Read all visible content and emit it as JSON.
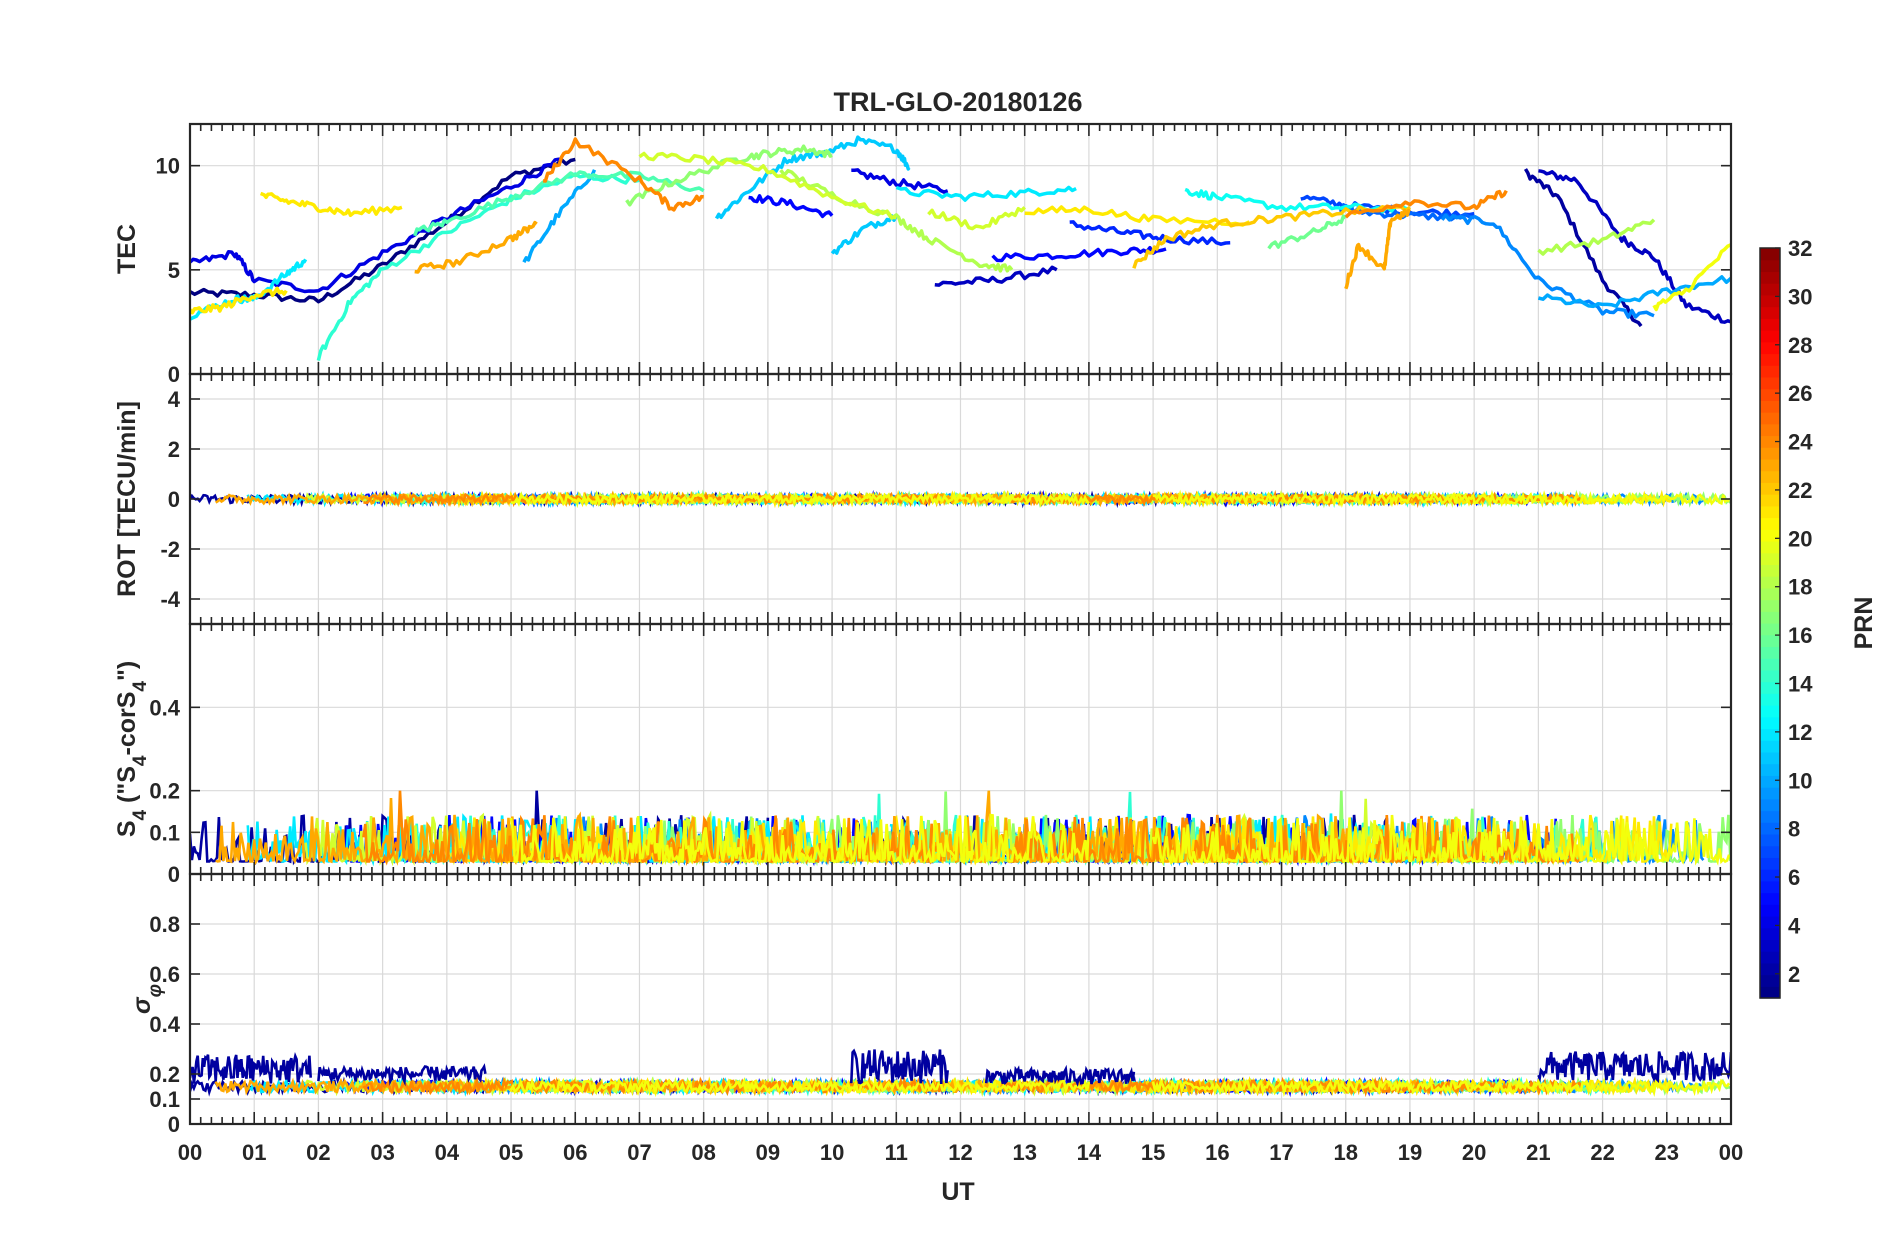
{
  "chart_data": {
    "type": "line",
    "title": "TRL-GLO-20180126",
    "xlabel": "UT",
    "x_tick_labels": [
      "00",
      "01",
      "02",
      "03",
      "04",
      "05",
      "06",
      "07",
      "08",
      "09",
      "10",
      "11",
      "12",
      "13",
      "14",
      "15",
      "16",
      "17",
      "18",
      "19",
      "20",
      "21",
      "22",
      "23",
      "00"
    ],
    "xlim": [
      0,
      24
    ],
    "grid": true,
    "panels": [
      {
        "name": "tec",
        "ylabel": "TEC",
        "ylim": [
          0,
          12
        ],
        "yticks": [
          0,
          5,
          10
        ],
        "ytick_labels": [
          "0",
          "5",
          "10"
        ],
        "series": [
          {
            "name": "PRN 1",
            "prn": 1,
            "x": [
              0.0,
              1.0,
              2.0,
              3.0,
              4.0,
              5.0,
              6.0
            ],
            "y": [
              3.9,
              3.8,
              3.5,
              5.2,
              7.3,
              9.5,
              10.3
            ]
          },
          {
            "name": "PRN 2",
            "prn": 2,
            "x": [
              20.8,
              21.3,
              22.0,
              22.6
            ],
            "y": [
              9.7,
              8.5,
              4.5,
              2.3
            ]
          },
          {
            "name": "PRN 3",
            "prn": 3,
            "x": [
              21.0,
              21.6,
              22.3,
              22.8,
              23.3,
              24.0
            ],
            "y": [
              9.7,
              9.3,
              6.5,
              5.6,
              3.3,
              2.5
            ]
          },
          {
            "name": "PRN 3 (12-14h)",
            "prn": 3,
            "x": [
              11.6,
              12.5,
              13.5
            ],
            "y": [
              4.3,
              4.5,
              5.0
            ]
          },
          {
            "name": "PRN 4",
            "prn": 4,
            "x": [
              0.0,
              0.7,
              1.0,
              2.0,
              3.0,
              4.0,
              5.0,
              5.8
            ],
            "y": [
              5.3,
              5.8,
              4.5,
              4.0,
              5.8,
              7.5,
              9.0,
              10.3
            ]
          },
          {
            "name": "PRN 4 (10-12h)",
            "prn": 4,
            "x": [
              10.3,
              11.0,
              11.8
            ],
            "y": [
              9.7,
              9.2,
              8.8
            ]
          },
          {
            "name": "PRN 5",
            "prn": 5,
            "x": [
              12.5,
              13.5,
              14.5,
              15.2
            ],
            "y": [
              5.6,
              5.7,
              5.9,
              6.0
            ]
          },
          {
            "name": "PRN 5 (8-10h)",
            "prn": 5,
            "x": [
              8.7,
              9.3,
              10.0
            ],
            "y": [
              8.5,
              8.2,
              7.6
            ]
          },
          {
            "name": "PRN 6",
            "prn": 6,
            "x": [
              13.7,
              14.5,
              15.2,
              16.2
            ],
            "y": [
              7.2,
              6.8,
              6.5,
              6.3
            ]
          },
          {
            "name": "PRN 7",
            "prn": 7,
            "x": [
              17.3,
              18.0,
              19.0,
              20.0
            ],
            "y": [
              8.5,
              8.1,
              7.8,
              7.7
            ]
          },
          {
            "name": "PRN 8",
            "prn": 8,
            "x": [
              17.9,
              18.2,
              19.0,
              20.0
            ],
            "y": [
              8.0,
              7.8,
              7.6,
              7.5
            ]
          },
          {
            "name": "PRN 9",
            "prn": 9,
            "x": [
              19.5,
              20.3,
              21.0,
              22.0,
              22.8
            ],
            "y": [
              7.5,
              7.3,
              4.5,
              3.0,
              2.8
            ]
          },
          {
            "name": "PRN 10",
            "prn": 10,
            "x": [
              21.0,
              22.0,
              23.0,
              24.0
            ],
            "y": [
              3.7,
              3.2,
              4.0,
              4.6
            ]
          },
          {
            "name": "PRN 10 (05-06h)",
            "prn": 10,
            "x": [
              5.2,
              5.7,
              6.3
            ],
            "y": [
              5.3,
              7.5,
              9.8
            ]
          },
          {
            "name": "PRN 11",
            "prn": 11,
            "x": [
              9.8,
              10.4,
              11.0,
              11.2
            ],
            "y": [
              10.5,
              11.2,
              10.8,
              9.9
            ]
          },
          {
            "name": "PRN 11 (08-09h)",
            "prn": 11,
            "x": [
              8.2,
              8.7,
              9.3,
              9.8
            ],
            "y": [
              7.5,
              8.8,
              10.3,
              10.6
            ]
          },
          {
            "name": "PRN 11 (10h)",
            "prn": 11,
            "x": [
              10.0,
              10.5,
              11.0
            ],
            "y": [
              5.8,
              7.0,
              7.6
            ]
          },
          {
            "name": "PRN 12",
            "prn": 12,
            "x": [
              0.0,
              0.7,
              1.0,
              1.5,
              1.8
            ],
            "y": [
              2.8,
              3.6,
              3.6,
              4.8,
              5.5
            ]
          },
          {
            "name": "PRN 12 (11-14h)",
            "prn": 12,
            "x": [
              11.0,
              12.0,
              13.0,
              13.8
            ],
            "y": [
              8.8,
              8.5,
              8.7,
              8.9
            ]
          },
          {
            "name": "PRN 13",
            "prn": 13,
            "x": [
              15.5,
              16.0,
              17.0,
              18.0,
              19.0
            ],
            "y": [
              8.8,
              8.5,
              8.0,
              8.0,
              7.9
            ]
          },
          {
            "name": "PRN 14",
            "prn": 14,
            "x": [
              2.0,
              2.5,
              3.0,
              4.0,
              5.0,
              6.0,
              7.0
            ],
            "y": [
              0.8,
              3.5,
              5.0,
              6.8,
              8.4,
              9.5,
              9.3
            ]
          },
          {
            "name": "PRN 15",
            "prn": 15,
            "x": [
              3.5,
              4.0,
              5.0,
              6.0,
              7.0,
              8.0
            ],
            "y": [
              6.8,
              7.3,
              8.5,
              9.6,
              9.5,
              8.8
            ]
          },
          {
            "name": "PRN 16",
            "prn": 16,
            "x": [
              16.8,
              17.5,
              18.0
            ],
            "y": [
              6.1,
              6.8,
              7.5
            ]
          },
          {
            "name": "PRN 17",
            "prn": 17,
            "x": [
              6.8,
              7.5,
              8.5,
              9.0,
              9.6,
              10.0
            ],
            "y": [
              8.2,
              9.2,
              10.3,
              10.6,
              10.8,
              10.5
            ]
          },
          {
            "name": "PRN 18",
            "prn": 18,
            "x": [
              21.0,
              22.0,
              22.8
            ],
            "y": [
              5.9,
              6.4,
              7.4
            ]
          },
          {
            "name": "PRN 18 (09-12h)",
            "prn": 18,
            "x": [
              9.2,
              10.0,
              11.0,
              11.5,
              12.3,
              12.8
            ],
            "y": [
              9.8,
              8.6,
              7.5,
              6.5,
              5.3,
              5.0
            ]
          },
          {
            "name": "PRN 19",
            "prn": 19,
            "x": [
              7.0,
              8.0,
              9.0,
              10.0,
              11.0
            ],
            "y": [
              10.5,
              10.3,
              9.8,
              8.5,
              7.5
            ]
          },
          {
            "name": "PRN 19 (11-13h)",
            "prn": 19,
            "x": [
              11.5,
              12.3,
              13.0
            ],
            "y": [
              7.8,
              7.0,
              8.0
            ]
          },
          {
            "name": "PRN 20",
            "prn": 20,
            "x": [
              22.8,
              23.3,
              24.0
            ],
            "y": [
              3.2,
              4.0,
              6.2
            ]
          },
          {
            "name": "PRN 21",
            "prn": 21,
            "x": [
              0.0,
              0.5,
              1.0,
              1.5
            ],
            "y": [
              3.0,
              3.2,
              3.8,
              4.0
            ]
          },
          {
            "name": "PRN 21 (01-03h)",
            "prn": 21,
            "x": [
              1.1,
              1.5,
              2.0,
              2.5,
              3.3
            ],
            "y": [
              8.6,
              8.3,
              8.0,
              7.7,
              8.0
            ]
          },
          {
            "name": "PRN 21 (13-16h)",
            "prn": 21,
            "x": [
              13.0,
              14.0,
              15.0,
              16.5
            ],
            "y": [
              7.8,
              7.9,
              7.4,
              7.3
            ]
          },
          {
            "name": "PRN 22",
            "prn": 22,
            "x": [
              14.7,
              15.2,
              16.0,
              17.0,
              18.0,
              19.0
            ],
            "y": [
              5.2,
              6.5,
              7.2,
              7.5,
              7.8,
              8.0
            ]
          },
          {
            "name": "PRN 23",
            "prn": 23,
            "x": [
              3.5,
              4.2,
              5.0,
              5.4
            ],
            "y": [
              5.0,
              5.4,
              6.5,
              7.2
            ]
          },
          {
            "name": "PRN 23 (17-19h)",
            "prn": 23,
            "x": [
              18.0,
              18.2,
              18.6,
              18.7,
              19.0
            ],
            "y": [
              4.2,
              6.2,
              5.0,
              7.4,
              7.8
            ]
          },
          {
            "name": "PRN 24",
            "prn": 24,
            "x": [
              5.5,
              6.0,
              7.0,
              7.5,
              8.0
            ],
            "y": [
              9.2,
              11.2,
              9.3,
              8.0,
              8.5
            ]
          },
          {
            "name": "PRN 24 (18-20h)",
            "prn": 24,
            "x": [
              18.0,
              19.0,
              20.0,
              20.5
            ],
            "y": [
              7.6,
              8.3,
              8.0,
              8.8
            ]
          }
        ]
      },
      {
        "name": "rot",
        "ylabel": "ROT [TECU/min]",
        "ylim": [
          -5,
          5
        ],
        "yticks": [
          -4,
          -2,
          0,
          2,
          4
        ],
        "ytick_labels": [
          "-4",
          "-2",
          "0",
          "2",
          "4"
        ],
        "noise_model": {
          "center": 0,
          "amplitude": 0.35
        }
      },
      {
        "name": "s4",
        "ylabel": "S4 (\"S4-corS4\")",
        "ylabel_parts": {
          "main": "S",
          "sub1": "4",
          "mid": " (\"S",
          "sub2": "4",
          "mid2": "-corS",
          "sub3": "4",
          "end": "\")"
        },
        "ylim": [
          0,
          0.6
        ],
        "yticks": [
          0,
          0.1,
          0.2,
          0.4
        ],
        "ytick_labels": [
          "0",
          "0.1",
          "0.2",
          "0.4"
        ],
        "noise_model": {
          "baseline": 0.03,
          "amplitude": 0.08,
          "max_peak": 0.2
        }
      },
      {
        "name": "sigma_phi",
        "ylabel": "σφ",
        "ylabel_parts": {
          "main": "σ",
          "sub": "φ"
        },
        "ylim": [
          0,
          1
        ],
        "yticks": [
          0,
          0.1,
          0.2,
          0.4,
          0.6,
          0.8
        ],
        "ytick_labels": [
          "0",
          "0.1",
          "0.2",
          "0.4",
          "0.6",
          "0.8"
        ],
        "noise_model": {
          "baseline": 0.15,
          "amplitude": 0.03
        },
        "elevated_segments": [
          {
            "prn": 2,
            "x": [
              0.0,
              1.9
            ],
            "level": 0.22,
            "amplitude": 0.06
          },
          {
            "prn": 2,
            "x": [
              2.0,
              4.6
            ],
            "level": 0.2,
            "amplitude": 0.03
          },
          {
            "prn": 2,
            "x": [
              10.3,
              11.8
            ],
            "level": 0.23,
            "amplitude": 0.07
          },
          {
            "prn": 2,
            "x": [
              12.4,
              14.7
            ],
            "level": 0.19,
            "amplitude": 0.03
          },
          {
            "prn": 2,
            "x": [
              21.0,
              24.0
            ],
            "level": 0.23,
            "amplitude": 0.06
          }
        ]
      }
    ],
    "colorbar": {
      "label": "PRN",
      "range": [
        1,
        32
      ],
      "ticks": [
        2,
        4,
        6,
        8,
        10,
        12,
        14,
        16,
        18,
        20,
        22,
        24,
        26,
        28,
        30,
        32
      ],
      "tick_labels": [
        "2",
        "4",
        "6",
        "8",
        "10",
        "12",
        "14",
        "16",
        "18",
        "20",
        "22",
        "24",
        "26",
        "28",
        "30",
        "32"
      ],
      "colormap": "jet"
    }
  }
}
